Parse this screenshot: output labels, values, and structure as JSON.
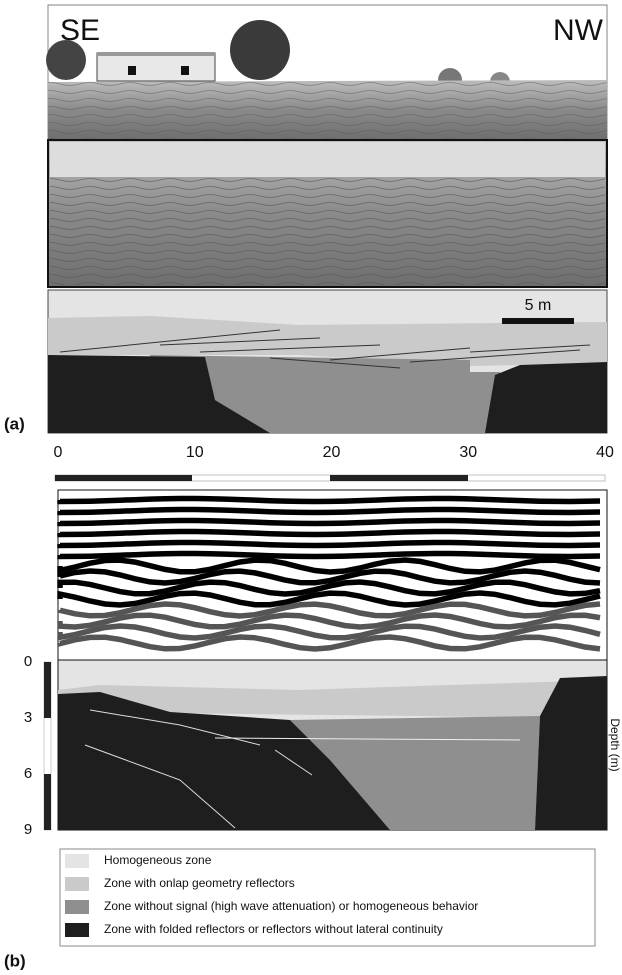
{
  "panel_a": {
    "label": "(a)",
    "left_direction": "SE",
    "right_direction": "NW",
    "scale_bar": "5 m"
  },
  "panel_b": {
    "label": "(b)",
    "distance_ticks": [
      0,
      10,
      20,
      30,
      40
    ],
    "depth_ticks": [
      0,
      3,
      6,
      9
    ],
    "depth_axis_label": "Depth (m)"
  },
  "legend": [
    {
      "label": "Homogeneous zone",
      "color": "#e4e4e4"
    },
    {
      "label": "Zone with onlap geometry reflectors",
      "color": "#cacaca"
    },
    {
      "label": "Zone without signal (high wave attenuation) or homogeneous behavior",
      "color": "#8f8f8f"
    },
    {
      "label": "Zone with folded reflectors or reflectors without lateral continuity",
      "color": "#1e1e1e"
    }
  ]
}
